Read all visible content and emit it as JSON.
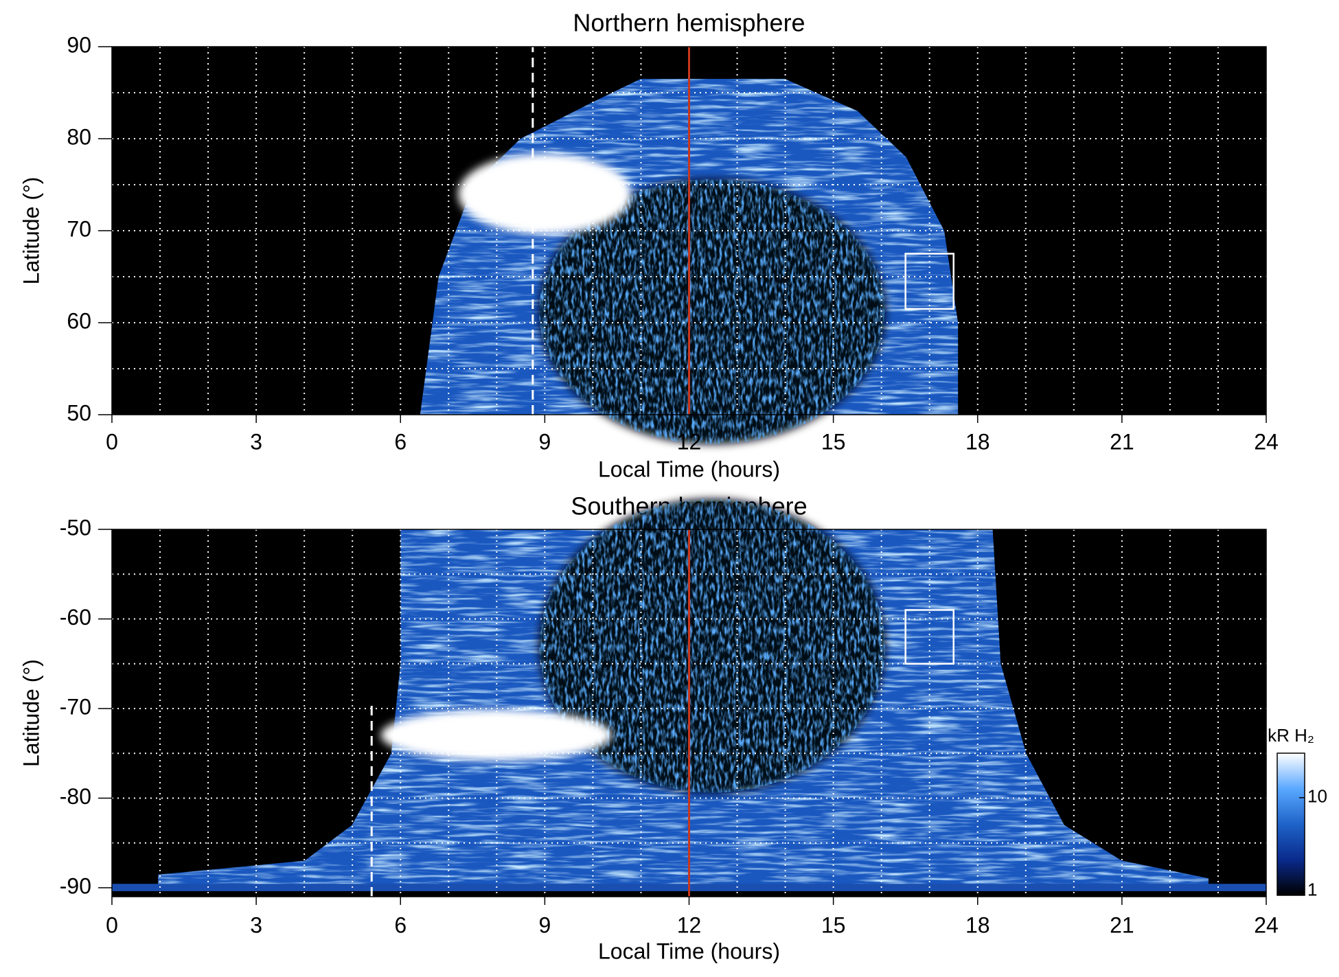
{
  "chart_data": [
    {
      "type": "heatmap",
      "title": "Northern hemisphere",
      "x_label": "Local Time (hours)",
      "y_label": "Latitude (°)",
      "xlim": [
        0,
        24
      ],
      "xticks": [
        0,
        3,
        6,
        9,
        12,
        15,
        18,
        21,
        24
      ],
      "ylim": [
        50,
        90
      ],
      "yticks": [
        50,
        60,
        70,
        80,
        90
      ],
      "x_gridlines": [
        1,
        2,
        3,
        4,
        5,
        6,
        7,
        8,
        9,
        10,
        11,
        12,
        13,
        14,
        15,
        16,
        17,
        18,
        19,
        20,
        21,
        22,
        23
      ],
      "y_gridlines": [
        55,
        60,
        65,
        70,
        75,
        80,
        85
      ],
      "vlines": [
        {
          "x": 8.75,
          "y": [
            50,
            90
          ],
          "color": "#ffffff",
          "style": "dashed"
        },
        {
          "x": 12,
          "y": [
            50,
            90
          ],
          "color": "#c8371e",
          "style": "solid"
        }
      ],
      "boxes": [
        {
          "x": [
            16.5,
            17.5
          ],
          "y": [
            61.5,
            67.5
          ],
          "color": "#ffffff"
        }
      ]
    },
    {
      "type": "heatmap",
      "title": "Southern hemisphere",
      "x_label": "Local Time (hours)",
      "y_label": "Latitude (°)",
      "xlim": [
        0,
        24
      ],
      "xticks": [
        0,
        3,
        6,
        9,
        12,
        15,
        18,
        21,
        24
      ],
      "ylim": [
        -91,
        -50
      ],
      "yticks": [
        -90,
        -80,
        -70,
        -60,
        -50
      ],
      "x_gridlines": [
        1,
        2,
        3,
        4,
        5,
        6,
        7,
        8,
        9,
        10,
        11,
        12,
        13,
        14,
        15,
        16,
        17,
        18,
        19,
        20,
        21,
        22,
        23
      ],
      "y_gridlines": [
        -85,
        -80,
        -75,
        -70,
        -65,
        -60,
        -55
      ],
      "vlines": [
        {
          "x": 5.4,
          "y": [
            -91,
            -69.5
          ],
          "color": "#ffffff",
          "style": "dashed"
        },
        {
          "x": 12,
          "y": [
            -91,
            -50
          ],
          "color": "#c8371e",
          "style": "solid"
        }
      ],
      "boxes": [
        {
          "x": [
            16.5,
            17.5
          ],
          "y": [
            -59,
            -65
          ],
          "color": "#ffffff"
        }
      ],
      "colorbar": {
        "label": "kR H₂",
        "scale": "log",
        "lim": [
          0.9,
          30
        ],
        "ticks": [
          1,
          10
        ],
        "colors": [
          "#000000",
          "#0a2a8c",
          "#1e63c8",
          "#5aa8ff",
          "#ffffff"
        ]
      }
    }
  ]
}
